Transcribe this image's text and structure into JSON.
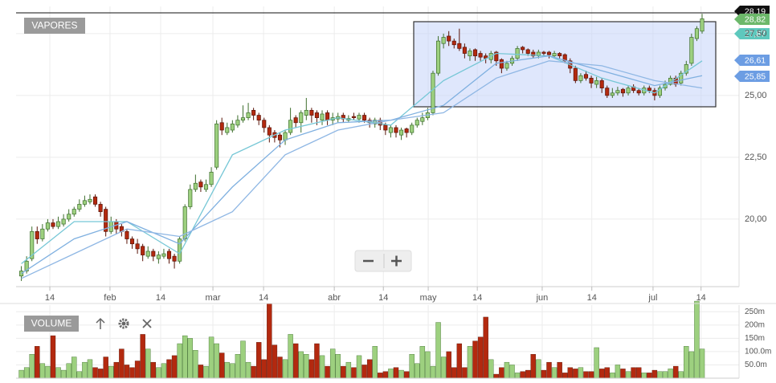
{
  "chart_data": {
    "type": "candlestick",
    "title": "VAPORES",
    "up_color": "#9dd07f",
    "down_color": "#b3290f",
    "grid": true,
    "xlim": [
      -1,
      136
    ],
    "xticks": [
      {
        "value": 5.4,
        "label": "14"
      },
      {
        "value": 16.8,
        "label": "feb"
      },
      {
        "value": 26.4,
        "label": "14"
      },
      {
        "value": 36.3,
        "label": "mar"
      },
      {
        "value": 45.9,
        "label": "14"
      },
      {
        "value": 59.3,
        "label": "abr"
      },
      {
        "value": 68.6,
        "label": "14"
      },
      {
        "value": 77.1,
        "label": "may"
      },
      {
        "value": 86.4,
        "label": "14"
      },
      {
        "value": 98.7,
        "label": "jun"
      },
      {
        "value": 108.1,
        "label": "14"
      },
      {
        "value": 119.7,
        "label": "jul"
      },
      {
        "value": 128.8,
        "label": "14"
      }
    ],
    "ylim": [
      17.27,
      28.34
    ],
    "yticks": [
      {
        "value": 20,
        "label": "20,00"
      },
      {
        "value": 22.5,
        "label": "22,50"
      },
      {
        "value": 25,
        "label": "25,00"
      },
      {
        "value": 27.5,
        "label": "27,50"
      }
    ],
    "open": [
      17.7,
      17.9,
      18.4,
      19.5,
      19.2,
      19.6,
      19.85,
      19.7,
      19.8,
      20.0,
      20.2,
      20.4,
      20.6,
      20.7,
      20.9,
      20.6,
      20.4,
      19.5,
      19.9,
      19.7,
      19.5,
      19.2,
      19.0,
      18.9,
      18.5,
      18.7,
      18.4,
      18.5,
      18.7,
      18.5,
      18.3,
      19.2,
      20.5,
      21.2,
      21.5,
      21.2,
      21.4,
      22.1,
      23.9,
      23.5,
      23.6,
      23.8,
      24.0,
      24.1,
      24.4,
      24.2,
      24.0,
      23.7,
      23.5,
      23.4,
      23.2,
      23.5,
      24.1,
      23.9,
      24.2,
      24.4,
      24.3,
      24.0,
      24.3,
      24.0,
      24.05,
      24.2,
      24.0,
      24.15,
      24.05,
      24.2,
      24.0,
      23.85,
      24.0,
      23.8,
      23.5,
      23.7,
      23.4,
      23.65,
      23.5,
      23.8,
      23.95,
      24.1,
      24.3,
      25.9,
      27.1,
      27.4,
      27.2,
      27.1,
      26.95,
      26.6,
      26.85,
      26.7,
      26.6,
      26.45,
      26.75,
      26.45,
      26.1,
      26.3,
      26.5,
      26.95,
      26.85,
      26.75,
      26.6,
      26.75,
      26.75,
      26.6,
      26.7,
      26.65,
      26.4,
      26.1,
      25.6,
      25.85,
      25.7,
      25.45,
      25.6,
      25.3,
      25.0,
      25.1,
      25.25,
      25.1,
      25.35,
      25.2,
      25.1,
      25.3,
      25.2,
      25.0,
      25.3,
      25.45,
      25.7,
      25.5,
      25.9,
      26.3,
      27.3,
      27.6
    ],
    "high": [
      18.1,
      18.5,
      19.7,
      19.7,
      19.8,
      20.0,
      20.0,
      20.1,
      20.2,
      20.4,
      20.5,
      20.8,
      20.95,
      21.0,
      21.0,
      20.7,
      20.5,
      20.1,
      20.0,
      19.8,
      19.6,
      19.3,
      19.2,
      19.0,
      18.9,
      18.8,
      18.7,
      18.8,
      18.8,
      18.6,
      19.3,
      20.6,
      21.4,
      21.8,
      21.6,
      21.6,
      22.1,
      24.0,
      24.1,
      23.9,
      24.0,
      24.2,
      24.6,
      24.7,
      24.5,
      24.3,
      24.1,
      23.8,
      23.6,
      23.5,
      23.6,
      24.5,
      24.2,
      24.4,
      24.9,
      24.5,
      24.4,
      24.4,
      24.4,
      24.3,
      24.3,
      24.3,
      24.2,
      24.3,
      24.3,
      24.3,
      24.1,
      24.1,
      24.1,
      23.9,
      23.8,
      23.8,
      23.7,
      23.7,
      23.9,
      24.1,
      24.3,
      24.5,
      26.0,
      27.4,
      27.5,
      27.6,
      27.3,
      27.7,
      27.1,
      26.9,
      26.9,
      26.8,
      26.7,
      26.8,
      26.8,
      26.5,
      26.4,
      26.6,
      27.0,
      27.0,
      26.9,
      26.85,
      26.85,
      26.8,
      26.8,
      26.8,
      26.75,
      26.7,
      26.5,
      26.2,
      25.9,
      26.0,
      25.8,
      25.75,
      25.7,
      25.4,
      25.3,
      25.35,
      25.3,
      25.4,
      25.45,
      25.3,
      25.4,
      25.4,
      25.3,
      25.4,
      25.6,
      25.8,
      25.8,
      26.0,
      26.4,
      27.5,
      27.8,
      28.3
    ],
    "low": [
      17.5,
      17.8,
      18.3,
      19.0,
      19.1,
      19.5,
      19.6,
      19.6,
      19.7,
      19.9,
      20.1,
      20.3,
      20.5,
      20.6,
      20.5,
      20.1,
      19.3,
      19.4,
      19.4,
      19.3,
      19.0,
      18.8,
      18.6,
      18.3,
      18.4,
      18.3,
      18.2,
      18.4,
      18.2,
      18.0,
      18.2,
      19.1,
      20.4,
      21.1,
      21.1,
      21.1,
      21.3,
      22.0,
      23.4,
      23.4,
      23.5,
      23.7,
      23.9,
      24.0,
      24.0,
      23.8,
      23.5,
      23.1,
      23.1,
      22.9,
      23.0,
      23.4,
      23.7,
      23.5,
      24.0,
      23.9,
      23.8,
      23.8,
      23.8,
      23.8,
      23.9,
      23.9,
      23.9,
      24.0,
      23.9,
      23.9,
      23.7,
      23.7,
      23.6,
      23.4,
      23.3,
      23.3,
      23.2,
      23.3,
      23.4,
      23.7,
      23.8,
      24.0,
      24.2,
      25.8,
      26.9,
      27.0,
      26.9,
      26.8,
      26.5,
      26.4,
      26.4,
      26.4,
      26.3,
      26.3,
      26.2,
      25.9,
      26.0,
      26.2,
      26.4,
      26.7,
      26.6,
      26.5,
      26.5,
      26.6,
      26.5,
      26.5,
      26.5,
      26.3,
      25.9,
      25.5,
      25.5,
      25.6,
      25.3,
      25.3,
      25.1,
      24.9,
      24.9,
      25.0,
      24.95,
      25.0,
      25.1,
      25.0,
      25.0,
      25.1,
      24.8,
      24.9,
      25.2,
      25.4,
      25.35,
      25.4,
      25.8,
      26.2,
      27.2,
      27.5
    ],
    "close": [
      17.9,
      18.3,
      19.5,
      19.2,
      19.6,
      19.85,
      19.7,
      19.9,
      20.0,
      20.2,
      20.4,
      20.6,
      20.75,
      20.8,
      20.6,
      20.3,
      19.5,
      19.9,
      19.6,
      19.5,
      19.2,
      19.0,
      18.8,
      18.55,
      18.7,
      18.5,
      18.55,
      18.6,
      18.4,
      18.3,
      19.2,
      20.5,
      21.2,
      21.45,
      21.3,
      21.4,
      21.9,
      23.85,
      23.6,
      23.7,
      23.85,
      24.0,
      24.1,
      24.3,
      24.2,
      24.0,
      23.7,
      23.4,
      23.3,
      23.2,
      23.5,
      24.0,
      23.9,
      24.3,
      24.4,
      24.2,
      24.1,
      24.25,
      24.0,
      24.1,
      24.15,
      24.05,
      24.07,
      24.1,
      24.2,
      24.0,
      23.9,
      24.0,
      23.8,
      23.6,
      23.7,
      23.5,
      23.6,
      23.5,
      23.8,
      24.0,
      24.1,
      24.3,
      25.9,
      27.2,
      27.35,
      27.2,
      27.05,
      26.9,
      26.7,
      26.8,
      26.6,
      26.55,
      26.5,
      26.7,
      26.4,
      26.1,
      26.3,
      26.5,
      26.9,
      26.85,
      26.7,
      26.6,
      26.75,
      26.7,
      26.65,
      26.7,
      26.6,
      26.4,
      26.1,
      25.6,
      25.8,
      25.7,
      25.5,
      25.6,
      25.3,
      25.0,
      25.1,
      25.2,
      25.1,
      25.3,
      25.2,
      25.1,
      25.3,
      25.2,
      25.0,
      25.3,
      25.45,
      25.7,
      25.45,
      25.9,
      26.25,
      27.35,
      27.7,
      28.1
    ],
    "moving_averages": [
      {
        "color": "#76c7d6",
        "x": [
          0,
          10,
          20,
          30,
          40,
          50,
          60,
          70,
          80,
          90,
          100,
          110,
          120,
          129
        ],
        "values": [
          18.2,
          19.9,
          19.9,
          18.6,
          22.6,
          23.6,
          24.1,
          23.8,
          25.6,
          26.7,
          26.6,
          25.7,
          25.1,
          26.4
        ]
      },
      {
        "color": "#7fb0e0",
        "x": [
          0,
          10,
          20,
          30,
          40,
          50,
          60,
          70,
          80,
          90,
          100,
          110,
          120,
          129
        ],
        "values": [
          17.8,
          19.2,
          19.9,
          19.0,
          21.3,
          23.2,
          23.9,
          24.0,
          24.6,
          26.3,
          26.6,
          26.0,
          25.4,
          25.8
        ]
      },
      {
        "color": "#8fb7e4",
        "x": [
          0,
          10,
          20,
          30,
          40,
          50,
          60,
          70,
          80,
          90,
          100,
          110,
          120,
          129
        ],
        "values": [
          17.6,
          18.6,
          19.6,
          19.3,
          20.3,
          22.6,
          23.6,
          24.0,
          24.3,
          25.7,
          26.4,
          26.2,
          25.6,
          25.3
        ]
      }
    ],
    "price_tags": [
      {
        "label": "28,19",
        "color": "#111111"
      },
      {
        "label": "28,82",
        "color": "#6cb86a"
      },
      {
        "label": "27,87",
        "color": "#5ec8bd"
      },
      {
        "label": "26,61",
        "color": "#6c9de3"
      },
      {
        "label": "25,85",
        "color": "#6c9de3"
      }
    ],
    "volume": {
      "title": "VOLUME",
      "ylim": [
        0,
        260
      ],
      "yticks": [
        {
          "value": 50,
          "label": "50.0m"
        },
        {
          "value": 100,
          "label": "100.0m"
        },
        {
          "value": 150,
          "label": "150m"
        },
        {
          "value": 200,
          "label": "200m"
        },
        {
          "value": 250,
          "label": "250m"
        }
      ],
      "values": [
        30,
        40,
        90,
        120,
        55,
        45,
        160,
        40,
        30,
        55,
        80,
        25,
        60,
        70,
        40,
        35,
        80,
        45,
        60,
        110,
        50,
        40,
        65,
        165,
        110,
        60,
        40,
        55,
        70,
        85,
        130,
        160,
        150,
        105,
        50,
        45,
        155,
        130,
        95,
        60,
        55,
        90,
        140,
        60,
        45,
        135,
        70,
        280,
        125,
        80,
        70,
        165,
        130,
        100,
        90,
        70,
        130,
        85,
        45,
        110,
        90,
        45,
        60,
        40,
        85,
        50,
        70,
        120,
        20,
        25,
        35,
        40,
        30,
        25,
        90,
        55,
        120,
        100,
        45,
        210,
        80,
        100,
        40,
        130,
        40,
        120,
        140,
        155,
        230,
        70,
        15,
        40,
        60,
        50,
        20,
        25,
        30,
        90,
        70,
        30,
        60,
        40,
        60,
        20,
        40,
        35,
        40,
        25,
        25,
        115,
        35,
        40,
        20,
        50,
        35,
        25,
        40,
        40,
        20,
        20,
        30,
        25,
        25,
        35,
        45,
        25,
        120,
        100,
        290,
        110
      ]
    }
  }
}
